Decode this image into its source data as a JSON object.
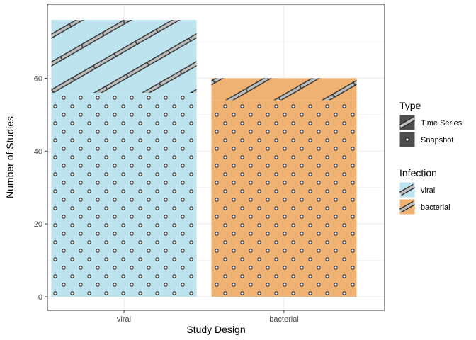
{
  "chart_data": {
    "type": "bar",
    "stacked": true,
    "categories": [
      "viral",
      "bacterial"
    ],
    "series": [
      {
        "name": "Snapshot",
        "pattern": "circle",
        "values": [
          56,
          54
        ]
      },
      {
        "name": "Time Series",
        "pattern": "stripe",
        "values": [
          20,
          6
        ]
      }
    ],
    "fill_by_category": {
      "viral": "#BDE3EE",
      "bacterial": "#EFB272"
    },
    "xlabel": "Study Design",
    "ylabel": "Number of Studies",
    "ylim": [
      0,
      80
    ],
    "yticks": [
      0,
      20,
      40,
      60
    ],
    "grid": true,
    "legend_position": "right",
    "legends": [
      {
        "title": "Type",
        "entries": [
          {
            "label": "Time Series",
            "pattern": "stripe"
          },
          {
            "label": "Snapshot",
            "pattern": "circle"
          }
        ]
      },
      {
        "title": "Infection",
        "entries": [
          {
            "label": "viral",
            "color": "#BDE3EE"
          },
          {
            "label": "bacterial",
            "color": "#EFB272"
          }
        ]
      }
    ]
  }
}
